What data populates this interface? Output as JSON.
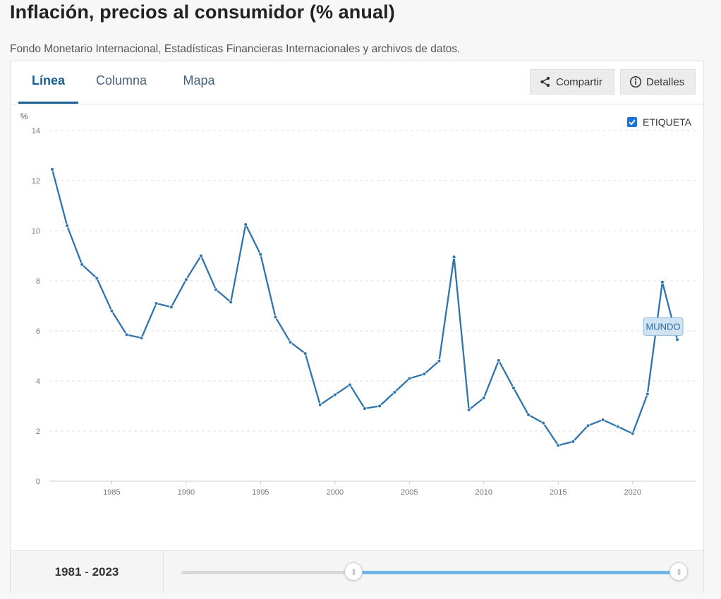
{
  "header": {
    "title": "Inflación, precios al consumidor (% anual)",
    "subtitle": "Fondo Monetario Internacional, Estadísticas Financieras Internacionales y archivos de datos."
  },
  "tabs": [
    {
      "label": "Línea",
      "active": true
    },
    {
      "label": "Columna",
      "active": false
    },
    {
      "label": "Mapa",
      "active": false
    }
  ],
  "toolbar": {
    "share_label": "Compartir",
    "share_icon": "share-icon",
    "details_label": "Detalles",
    "details_icon": "info-icon"
  },
  "label_toggle": {
    "label": "ETIQUETA",
    "checked": true
  },
  "range": {
    "start": "1981",
    "separator": "-",
    "end": "2023",
    "selected_start_fraction": 0.34,
    "selected_end_fraction": 1.0
  },
  "colors": {
    "line": "#2e74ad",
    "accent": "#1c5f95",
    "slider_fill": "#6fb5e6",
    "checkbox": "#1a73d9"
  },
  "chart_data": {
    "type": "line",
    "ylabel": "%",
    "ylim": [
      0,
      14
    ],
    "xlim": [
      1981,
      2023
    ],
    "y_ticks": [
      "0",
      "2",
      "4",
      "6",
      "8",
      "10",
      "12",
      "14"
    ],
    "x_ticks": [
      "1985",
      "1990",
      "1995",
      "2000",
      "2005",
      "2010",
      "2015",
      "2020"
    ],
    "grid": true,
    "series": [
      {
        "name": "MUNDO",
        "x": [
          1981,
          1982,
          1983,
          1984,
          1985,
          1986,
          1987,
          1988,
          1989,
          1990,
          1991,
          1992,
          1993,
          1994,
          1995,
          1996,
          1997,
          1998,
          1999,
          2000,
          2001,
          2002,
          2003,
          2004,
          2005,
          2006,
          2007,
          2008,
          2009,
          2010,
          2011,
          2012,
          2013,
          2014,
          2015,
          2016,
          2017,
          2018,
          2019,
          2020,
          2021,
          2022,
          2023
        ],
        "values": [
          12.45,
          10.2,
          8.65,
          8.1,
          6.8,
          5.85,
          5.72,
          7.1,
          6.95,
          8.05,
          9.0,
          7.65,
          7.15,
          10.25,
          9.05,
          6.55,
          5.55,
          5.1,
          3.05,
          3.45,
          3.85,
          2.9,
          3.0,
          3.55,
          4.1,
          4.28,
          4.8,
          8.95,
          2.85,
          3.32,
          4.82,
          3.72,
          2.65,
          2.32,
          1.43,
          1.58,
          2.22,
          2.45,
          2.18,
          1.9,
          3.48,
          7.95,
          5.65
        ]
      }
    ]
  }
}
